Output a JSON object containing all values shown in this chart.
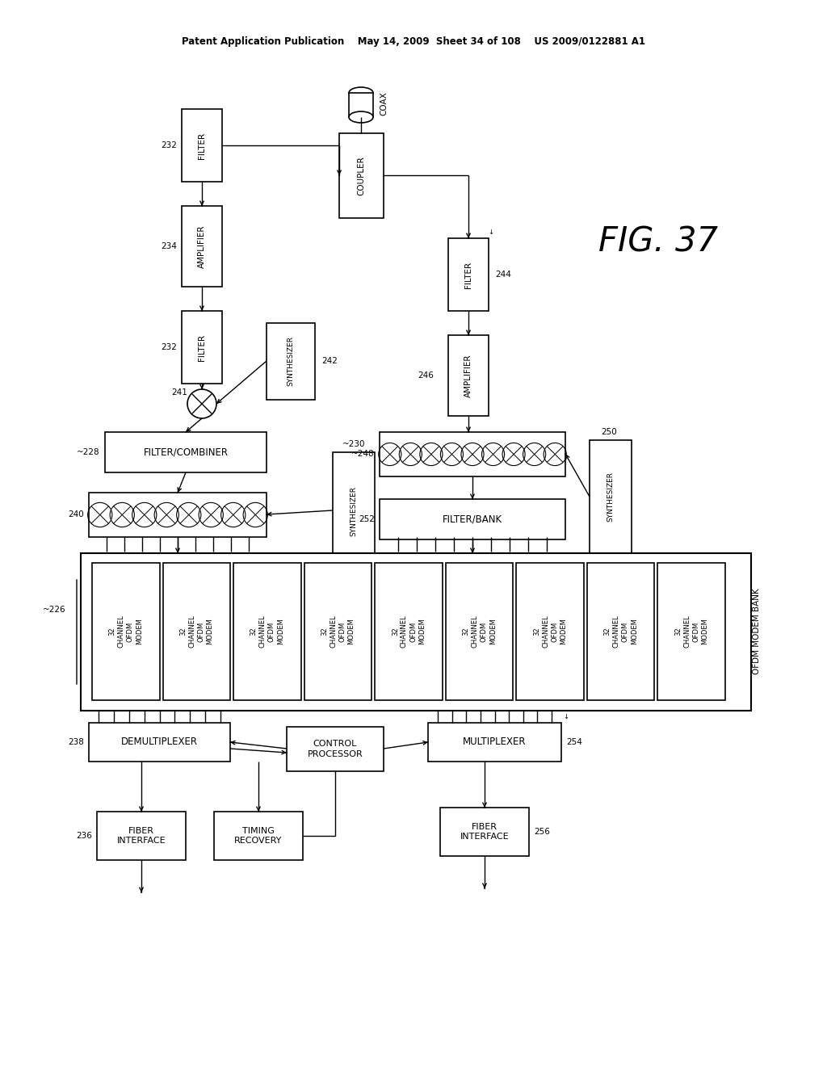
{
  "title_line": "Patent Application Publication    May 14, 2009  Sheet 34 of 108    US 2009/0122881 A1",
  "bg_color": "#ffffff",
  "line_color": "#000000",
  "box_color": "#ffffff",
  "text_color": "#000000",
  "fig_label": "FIG. 37"
}
